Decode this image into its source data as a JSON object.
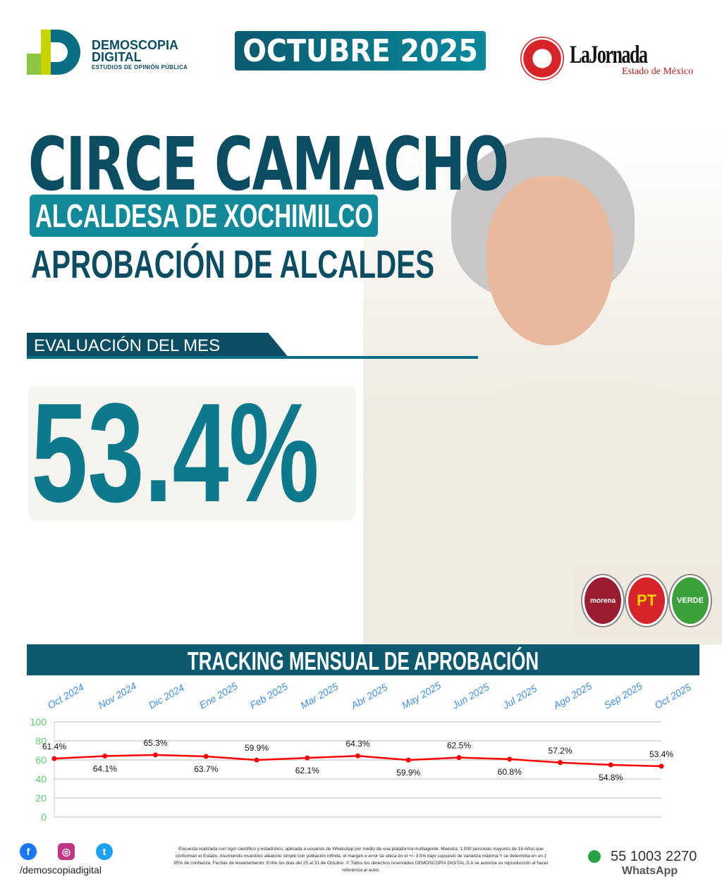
{
  "brand": {
    "line1": "DEMOSCOPIA",
    "line2": "DIGITAL",
    "tagline": "ESTUDIOS DE OPINIÓN PÚBLICA"
  },
  "month": "OCTUBRE 2025",
  "partner": {
    "name": "LaJornada",
    "subtitle": "Estado de México"
  },
  "title": {
    "name": "CIRCE CAMACHO",
    "role": "ALCALDESA DE XOCHIMILCO",
    "section": "APROBACIÓN DE ALCALDES"
  },
  "evaluation": {
    "label": "EVALUACIÓN DEL MES",
    "value": "53.4%"
  },
  "parties": [
    {
      "label": "morena",
      "color": "#9b1b30"
    },
    {
      "label": "PT",
      "color": "#d6242a"
    },
    {
      "label": "VERDE",
      "color": "#3aa13a"
    }
  ],
  "chart_data": {
    "type": "line",
    "title": "TRACKING MENSUAL DE APROBACIÓN",
    "categories": [
      "Oct 2024",
      "Nov 2024",
      "Dic 2024",
      "Ene 2025",
      "Feb 2025",
      "Mar 2025",
      "Abr 2025",
      "May 2025",
      "Jun 2025",
      "Jul 2025",
      "Ago 2025",
      "Sep 2025",
      "Oct 2025"
    ],
    "values": [
      61.4,
      64.1,
      65.3,
      63.7,
      59.9,
      62.1,
      64.3,
      59.9,
      62.5,
      60.8,
      57.2,
      54.8,
      53.4
    ],
    "labels": [
      "61.4%",
      "64.1%",
      "65.3%",
      "63.7%",
      "59.9%",
      "62.1%",
      "64.3%",
      "59.9%",
      "62.5%",
      "60.8%",
      "57.2%",
      "54.8%",
      "53.4%"
    ],
    "yticks": [
      "0",
      "20",
      "40",
      "60",
      "80",
      "100"
    ],
    "ylim": [
      0,
      100
    ],
    "grid": true,
    "line_color": "#ff0000",
    "tick_color_x": "#3a8ef0",
    "tick_color_y": "#5ccc72"
  },
  "footer": {
    "handle": "/demoscopiadigital",
    "disclaimer": "Encuesta realizada con rigor científico y estadístico, aplicada a usuarios de WhatsApp por medio de una plataforma multiagente. Muestra: 1,000 personas mayores de 18 Años que conforman el Estado. Asumiendo muestreo aleatorio simple con población infinita, el margen e error se ubica en el +/- 3.5% bajo supuesto de varianza máxima Y se determina en un ‡ 95% de confianza. Fechas de levantamiento: Entre los días del 25 al 31 de Octubre. © Todos los derechos reservados DEMOSCOPIA DIGITAL,S.A se autoriza su reproducción al hacer referencia al autor.",
    "phone": "55 1003 2270",
    "whatsapp": "WhatsApp",
    "icons": [
      "facebook-icon",
      "instagram-icon",
      "twitter-icon",
      "whatsapp-icon"
    ]
  }
}
